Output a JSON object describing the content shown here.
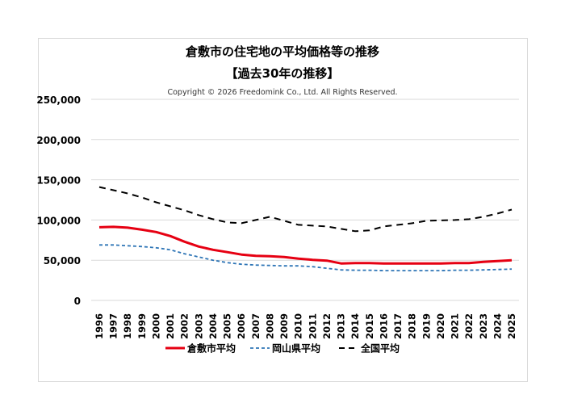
{
  "chart_data": {
    "type": "line",
    "title": "倉敷市の住宅地の平均価格等の推移",
    "subtitle": "【過去30年の推移】",
    "copyright": "Copyright © 2026 Freedomink Co., Ltd. All Rights Reserved.",
    "xlabel": "",
    "ylabel": "",
    "ylim": [
      0,
      250000
    ],
    "yticks": [
      0,
      50000,
      100000,
      150000,
      200000,
      250000
    ],
    "ytick_labels": [
      "0",
      "50,000",
      "100,000",
      "150,000",
      "200,000",
      "250,000"
    ],
    "grid": true,
    "legend_placement": "bottom",
    "x": [
      "1996",
      "1997",
      "1998",
      "1999",
      "2000",
      "2001",
      "2002",
      "2003",
      "2004",
      "2005",
      "2006",
      "2007",
      "2008",
      "2009",
      "2010",
      "2011",
      "2012",
      "2013",
      "2014",
      "2015",
      "2016",
      "2017",
      "2018",
      "2019",
      "2020",
      "2021",
      "2022",
      "2023",
      "2024",
      "2025"
    ],
    "series": [
      {
        "name": "倉敷市平均",
        "color": "#e60012",
        "style": "solid",
        "values": [
          91000,
          91500,
          90500,
          88000,
          85000,
          80000,
          73000,
          67000,
          63000,
          60000,
          57000,
          55500,
          55000,
          54000,
          52000,
          50500,
          49500,
          46000,
          46500,
          46500,
          46000,
          46000,
          46000,
          46000,
          46000,
          46500,
          46500,
          48000,
          49000,
          50000
        ]
      },
      {
        "name": "岡山県平均",
        "color": "#2e75b6",
        "style": "dashed",
        "values": [
          69000,
          69000,
          68000,
          67000,
          65500,
          63000,
          58000,
          54000,
          50000,
          47000,
          45000,
          44000,
          43500,
          43000,
          43000,
          42000,
          40000,
          38000,
          37500,
          37500,
          37000,
          37000,
          37000,
          37000,
          37000,
          37500,
          37500,
          38000,
          38500,
          39000
        ]
      },
      {
        "name": "全国平均",
        "color": "#000000",
        "style": "dashed",
        "values": [
          141000,
          137000,
          133000,
          128000,
          122000,
          117000,
          112000,
          106000,
          101000,
          97000,
          96000,
          100000,
          104000,
          99000,
          94000,
          93000,
          92000,
          89000,
          86000,
          87000,
          92000,
          94000,
          96000,
          99000,
          99500,
          100000,
          101000,
          104000,
          108000,
          113000
        ]
      }
    ]
  }
}
